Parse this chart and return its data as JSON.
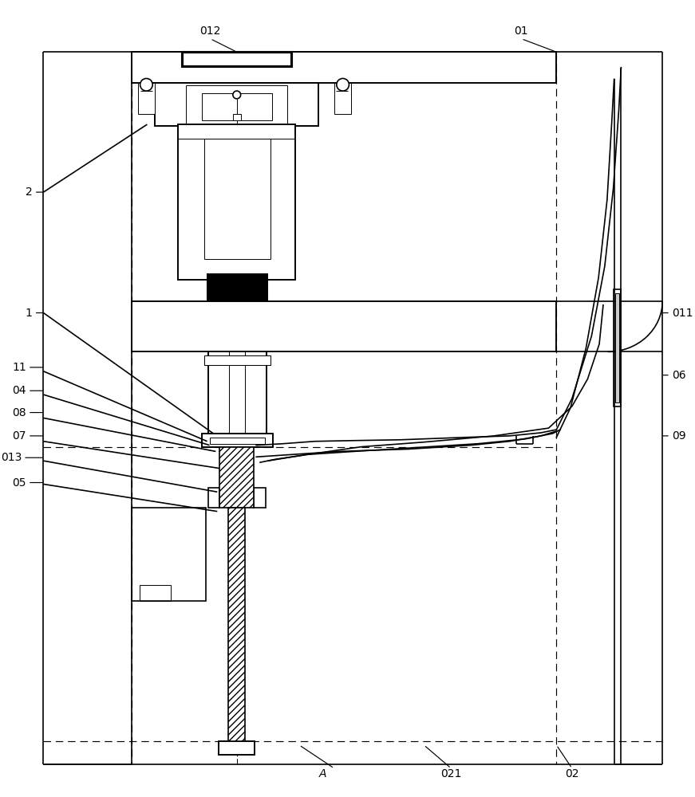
{
  "bg": "#ffffff",
  "lc": "#000000",
  "fig_w": 8.71,
  "fig_h": 10.0,
  "dpi": 100
}
